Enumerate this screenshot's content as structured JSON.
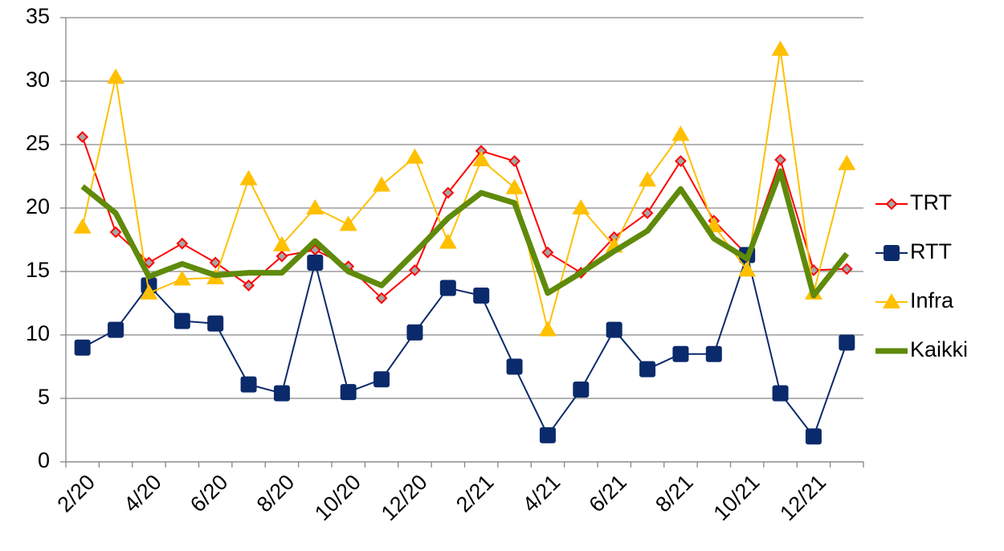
{
  "chart_data": {
    "type": "line",
    "categories": [
      "2/20",
      null,
      "4/20",
      null,
      "6/20",
      null,
      "8/20",
      null,
      "10/20",
      null,
      "12/20",
      null,
      "2/21",
      null,
      "4/21",
      null,
      "6/21",
      null,
      "8/21",
      null,
      "10/21",
      null,
      "12/21",
      null
    ],
    "series": [
      {
        "name": "TRT",
        "color": "#ff0000",
        "marker": "diamond",
        "values": [
          25.6,
          18.1,
          15.7,
          17.2,
          15.7,
          13.9,
          16.2,
          16.7,
          15.4,
          12.9,
          15.1,
          21.2,
          24.5,
          23.7,
          16.5,
          14.9,
          17.7,
          19.6,
          23.7,
          19.0,
          16.3,
          23.8,
          15.1,
          15.2
        ]
      },
      {
        "name": "RTT",
        "color": "#0b2a6b",
        "marker": "square",
        "values": [
          9.0,
          10.4,
          13.9,
          11.1,
          10.9,
          6.1,
          5.4,
          15.7,
          5.5,
          6.5,
          10.2,
          13.7,
          13.1,
          7.5,
          2.1,
          5.7,
          10.4,
          7.3,
          8.5,
          8.5,
          16.3,
          5.4,
          2.0,
          9.4
        ]
      },
      {
        "name": "Infra",
        "color": "#ffc000",
        "marker": "triangle",
        "values": [
          18.5,
          30.3,
          13.3,
          14.4,
          14.5,
          22.3,
          17.1,
          20.0,
          18.7,
          21.8,
          24.0,
          17.3,
          23.8,
          21.6,
          10.4,
          20.0,
          17.0,
          22.2,
          25.8,
          18.6,
          15.1,
          32.5,
          13.3,
          23.5
        ]
      },
      {
        "name": "Kaikki",
        "color": "#5f8a0a",
        "marker": "none",
        "values": [
          21.7,
          19.6,
          14.6,
          15.6,
          14.7,
          14.9,
          14.9,
          17.4,
          15.0,
          13.9,
          16.5,
          19.2,
          21.2,
          20.4,
          13.3,
          14.9,
          16.6,
          18.2,
          21.5,
          17.6,
          16.0,
          22.9,
          13.1,
          16.4
        ]
      }
    ],
    "ylim": [
      0,
      35
    ],
    "yticks": [
      0,
      5,
      10,
      15,
      20,
      25,
      30,
      35
    ],
    "grid": true,
    "legend": "right"
  }
}
